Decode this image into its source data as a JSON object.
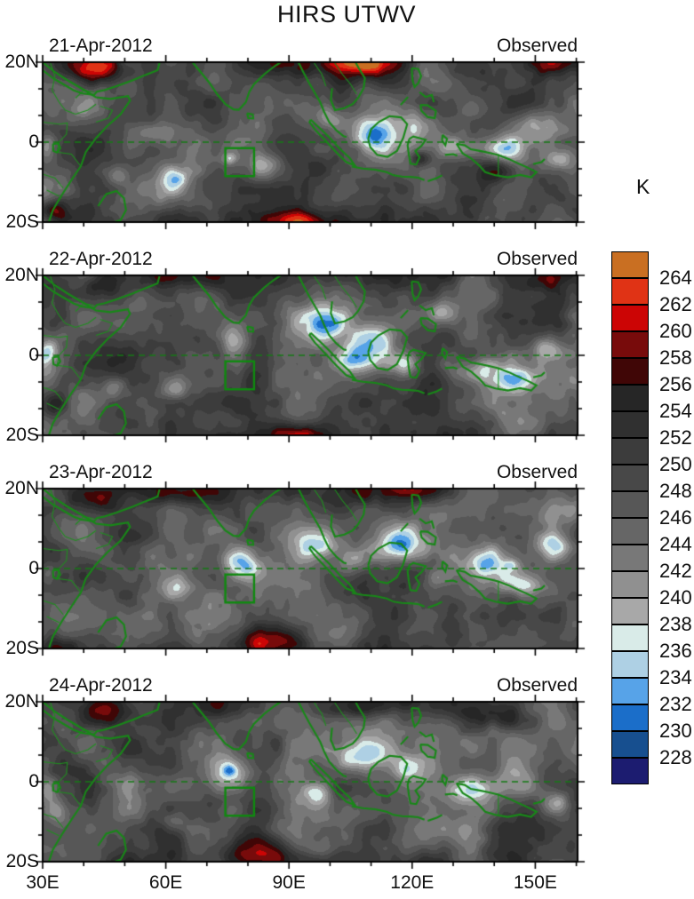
{
  "title": "HIRS UTWV",
  "unit_label": "K",
  "chart_data": {
    "type": "heatmap",
    "title": "HIRS UTWV",
    "unit": "K",
    "layout": "4 stacked filled-contour longitude-latitude maps sharing one vertical colorbar, legend right",
    "x_axis": {
      "tick_labels": [
        "30E",
        "60E",
        "90E",
        "120E",
        "150E"
      ],
      "tick_values": [
        30,
        60,
        90,
        120,
        150
      ],
      "minor_tick_interval_deg": 10,
      "range": [
        30,
        160
      ]
    },
    "y_axis": {
      "tick_labels": [
        "20N",
        "0",
        "20S"
      ],
      "tick_values": [
        20,
        0,
        -20
      ],
      "range": [
        -20,
        20
      ]
    },
    "colorbar": {
      "unit": "K",
      "orientation": "vertical",
      "tick_labels": [
        "264",
        "262",
        "260",
        "258",
        "256",
        "254",
        "252",
        "250",
        "248",
        "246",
        "244",
        "242",
        "240",
        "238",
        "236",
        "234",
        "232",
        "230",
        "228"
      ],
      "boundary_values": [
        264,
        262,
        260,
        258,
        256,
        254,
        252,
        250,
        248,
        246,
        244,
        242,
        240,
        238,
        236,
        234,
        232,
        230,
        228
      ],
      "contour_interval": 2,
      "colors_top_to_bottom": [
        "#c96f22",
        "#e03315",
        "#cc0505",
        "#780b0b",
        "#400606",
        "#262626",
        "#303030",
        "#3c3c3c",
        "#484848",
        "#575757",
        "#666666",
        "#787878",
        "#909090",
        "#a8a8a8",
        "#d9ebe8",
        "#aed0e4",
        "#57a3e8",
        "#1b6ec9",
        "#174f8f",
        "#1c1c70"
      ]
    },
    "map_style": {
      "coastline_color": "#188818",
      "border_color": "#1f8f1f",
      "equator_line_color": "#157a15",
      "study_box_color": "#0f8a0f",
      "base_value_K": 247.4
    },
    "annotations": {
      "equator_line": {
        "lat": 0,
        "style": "dashed"
      },
      "study_box": {
        "lon_range": [
          74.5,
          81.5
        ],
        "lat_range": [
          -8.5,
          -1.5
        ]
      }
    },
    "panels": [
      {
        "date": "21-Apr-2012",
        "source": "Observed",
        "seed": 11,
        "approx_anomaly_blobs": [
          [
            45,
            18,
            7,
            4,
            12
          ],
          [
            107,
            20,
            9,
            3.5,
            11
          ],
          [
            33,
            -17,
            3.5,
            3,
            11
          ],
          [
            122,
            -4,
            2.5,
            2,
            9
          ],
          [
            141,
            -7,
            4,
            2.5,
            9
          ],
          [
            92,
            -20,
            8,
            3,
            7
          ],
          [
            152,
            20,
            6,
            3,
            6
          ],
          [
            31,
            -1,
            2.5,
            4,
            -10
          ],
          [
            62,
            -9,
            3.5,
            3,
            -8
          ],
          [
            48,
            -8,
            3,
            2.5,
            -7
          ],
          [
            75.5,
            -4,
            1.8,
            1.5,
            -7
          ],
          [
            84,
            -6,
            4,
            3,
            -7
          ],
          [
            57,
            2,
            4,
            3,
            -6
          ],
          [
            100,
            6,
            5,
            4,
            -10
          ],
          [
            110,
            2,
            6,
            4,
            -12
          ],
          [
            121,
            4,
            5,
            4,
            -10
          ],
          [
            131,
            -1,
            5,
            3,
            -9
          ],
          [
            141,
            -1.5,
            6,
            3,
            -10
          ],
          [
            150,
            4,
            5,
            4,
            -9
          ],
          [
            156,
            -4,
            4,
            3,
            -8
          ],
          [
            95,
            20,
            60,
            3.5,
            4
          ],
          [
            95,
            -20,
            60,
            3.5,
            3
          ]
        ]
      },
      {
        "date": "22-Apr-2012",
        "source": "Observed",
        "seed": 22,
        "approx_anomaly_blobs": [
          [
            44,
            17,
            7,
            4,
            10
          ],
          [
            33,
            -12,
            3,
            3,
            8
          ],
          [
            92,
            -20,
            8,
            3,
            10
          ],
          [
            152,
            19,
            6,
            3,
            7
          ],
          [
            60,
            20,
            8,
            3,
            6
          ],
          [
            31,
            1,
            2.5,
            3,
            -8
          ],
          [
            47,
            -8,
            3,
            3,
            -8
          ],
          [
            62,
            -8,
            3.5,
            3,
            -9
          ],
          [
            77,
            4,
            3.5,
            4,
            -10
          ],
          [
            99,
            8,
            5,
            4,
            -13
          ],
          [
            110,
            3,
            6,
            5,
            -15
          ],
          [
            105,
            -1,
            4,
            3,
            -8
          ],
          [
            126,
            11,
            4,
            3,
            -9
          ],
          [
            136,
            -4,
            7,
            4,
            -12
          ],
          [
            146,
            -6,
            5,
            3,
            -10
          ],
          [
            153,
            2,
            4,
            3,
            -8
          ],
          [
            118,
            -2,
            5,
            3,
            -9
          ],
          [
            95,
            20,
            60,
            3.5,
            3.5
          ],
          [
            95,
            -20,
            60,
            3.5,
            3
          ]
        ]
      },
      {
        "date": "23-Apr-2012",
        "source": "Observed",
        "seed": 33,
        "approx_anomaly_blobs": [
          [
            42,
            18,
            7,
            4,
            12
          ],
          [
            86,
            -18,
            8,
            4,
            13
          ],
          [
            34,
            -20,
            4,
            3,
            9
          ],
          [
            120,
            20,
            8,
            3,
            6
          ],
          [
            60,
            19,
            7,
            3,
            6
          ],
          [
            31,
            -1,
            2.5,
            3,
            -8
          ],
          [
            62,
            -5,
            3.5,
            3,
            -8
          ],
          [
            78,
            2,
            4.5,
            4,
            -13
          ],
          [
            97,
            6,
            5,
            4,
            -11
          ],
          [
            106,
            2,
            5,
            4,
            -10
          ],
          [
            117,
            6,
            5,
            4,
            -12
          ],
          [
            126,
            -2,
            4,
            3,
            -9
          ],
          [
            138,
            1,
            7,
            4,
            -12
          ],
          [
            144,
            1,
            1.8,
            1.4,
            -6
          ],
          [
            146,
            -4,
            5,
            3,
            -11
          ],
          [
            154,
            6,
            4,
            3,
            -8
          ],
          [
            95,
            20,
            60,
            3.5,
            4
          ],
          [
            95,
            -20,
            60,
            3.5,
            3
          ]
        ]
      },
      {
        "date": "24-Apr-2012",
        "source": "Observed",
        "seed": 44,
        "approx_anomaly_blobs": [
          [
            45,
            18,
            7,
            4,
            12
          ],
          [
            83,
            -18,
            8,
            4,
            13
          ],
          [
            140,
            16,
            8,
            3,
            7
          ],
          [
            105,
            19,
            8,
            3,
            7
          ],
          [
            31,
            -2,
            2.5,
            3,
            -9
          ],
          [
            62,
            -10,
            3.5,
            3,
            -8
          ],
          [
            76,
            2,
            5,
            4.5,
            -14
          ],
          [
            75.5,
            3,
            1.8,
            1.4,
            -6
          ],
          [
            97,
            -3,
            4,
            3,
            -9
          ],
          [
            108,
            6,
            6,
            4,
            -11
          ],
          [
            120,
            3,
            5,
            4,
            -9
          ],
          [
            134,
            -2,
            8,
            4,
            -12
          ],
          [
            146,
            0,
            5,
            4,
            -10
          ],
          [
            155,
            -5,
            4,
            3,
            -8
          ],
          [
            33,
            -7,
            2.5,
            3,
            -7
          ],
          [
            95,
            20,
            60,
            3.5,
            4
          ],
          [
            95,
            -20,
            60,
            3.5,
            3
          ]
        ]
      }
    ]
  }
}
